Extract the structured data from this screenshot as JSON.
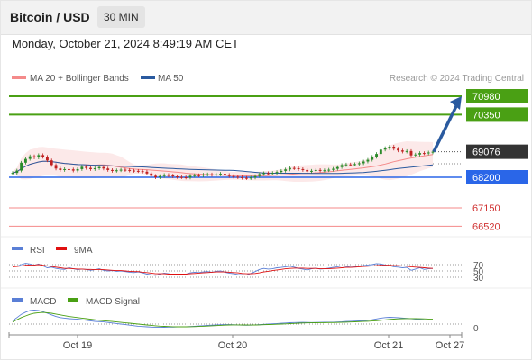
{
  "header": {
    "title": "Bitcoin / USD",
    "interval": "30 MIN"
  },
  "datetime": "Monday, October 21, 2024 8:49:19 AM CET",
  "credit": "Research © 2024 Trading Central",
  "colors": {
    "resistance": "#4aa014",
    "support": "#f48a8a",
    "pivot": "#2a66e8",
    "price": "#333333",
    "ma50": "#2a5a9f",
    "bollinger": "#f48a8a",
    "rsi": "#5a7fd6",
    "rsi_ma": "#e01010",
    "macd": "#5a7fd6",
    "macd_signal": "#4aa014",
    "up_candle": "#2a8a2a",
    "down_candle": "#c02020",
    "arrow": "#2a5a9f"
  },
  "chart_data": [
    {
      "type": "candlestick",
      "title": "",
      "legend": [
        "MA 20 + Bollinger Bands",
        "MA 50"
      ],
      "x_ticks": [
        "Oct 19",
        "Oct 20",
        "Oct 21",
        "Oct 27"
      ],
      "price_ticks": [
        "70980",
        "70350",
        "69076",
        "68200",
        "67150",
        "66520"
      ],
      "levels": [
        {
          "label": "70980",
          "value": 70980,
          "kind": "resistance"
        },
        {
          "label": "70350",
          "value": 70350,
          "kind": "resistance"
        },
        {
          "label": "69076",
          "value": 69076,
          "kind": "last"
        },
        {
          "label": "68200",
          "value": 68200,
          "kind": "pivot"
        },
        {
          "label": "67150",
          "value": 67150,
          "kind": "support"
        },
        {
          "label": "66520",
          "value": 66520,
          "kind": "support"
        }
      ],
      "target_arrow": {
        "from": 69076,
        "to": 70980
      },
      "close": [
        68350,
        68430,
        68700,
        68830,
        68920,
        68880,
        68960,
        68900,
        68780,
        68620,
        68500,
        68450,
        68480,
        68470,
        68430,
        68480,
        68560,
        68520,
        68480,
        68510,
        68550,
        68500,
        68450,
        68420,
        68440,
        68460,
        68450,
        68430,
        68420,
        68410,
        68390,
        68330,
        68250,
        68200,
        68240,
        68280,
        68260,
        68230,
        68210,
        68200,
        68190,
        68250,
        68270,
        68260,
        68290,
        68300,
        68280,
        68300,
        68320,
        68280,
        68240,
        68220,
        68200,
        68180,
        68170,
        68190,
        68240,
        68310,
        68340,
        68330,
        68350,
        68380,
        68420,
        68470,
        68520,
        68510,
        68480,
        68450,
        68400,
        68420,
        68450,
        68430,
        68440,
        68460,
        68490,
        68550,
        68620,
        68640,
        68630,
        68650,
        68680,
        68740,
        68800,
        68900,
        69000,
        69150,
        69200,
        69250,
        69180,
        69120,
        69080,
        69100,
        68950,
        68980,
        69030,
        69020,
        69050,
        69076
      ],
      "high_offset": 60,
      "low_offset": 60
    },
    {
      "type": "line",
      "title": "",
      "legend": [
        "RSI",
        "9MA"
      ],
      "y_ticks": [
        "70",
        "50",
        "30"
      ],
      "rsi": [
        64,
        65,
        70,
        74,
        72,
        68,
        72,
        66,
        60,
        62,
        58,
        56,
        55,
        60,
        57,
        54,
        56,
        55,
        52,
        54,
        57,
        52,
        50,
        51,
        49,
        50,
        48,
        46,
        45,
        47,
        44,
        40,
        38,
        36,
        40,
        43,
        41,
        38,
        39,
        38,
        40,
        44,
        46,
        45,
        47,
        48,
        46,
        49,
        50,
        46,
        43,
        41,
        39,
        38,
        37,
        42,
        48,
        55,
        58,
        56,
        57,
        60,
        61,
        63,
        65,
        62,
        58,
        56,
        53,
        57,
        59,
        56,
        57,
        59,
        61,
        63,
        66,
        64,
        62,
        63,
        66,
        67,
        69,
        70,
        73,
        72,
        69,
        67,
        63,
        62,
        60,
        61,
        52,
        56,
        60,
        55,
        57,
        58
      ],
      "rsi_ma": [
        63,
        64,
        66,
        68,
        69,
        69,
        70,
        68,
        66,
        64,
        62,
        60,
        58,
        58,
        57,
        56,
        56,
        55,
        55,
        54,
        55,
        54,
        53,
        52,
        51,
        51,
        50,
        49,
        48,
        48,
        46,
        45,
        43,
        41,
        41,
        41,
        40,
        40,
        40,
        40,
        40,
        41,
        42,
        43,
        44,
        45,
        46,
        47,
        47,
        47,
        46,
        45,
        44,
        42,
        41,
        41,
        42,
        44,
        47,
        49,
        51,
        53,
        55,
        57,
        58,
        59,
        59,
        59,
        58,
        58,
        58,
        57,
        57,
        57,
        58,
        59,
        60,
        61,
        61,
        62,
        63,
        64,
        65,
        66,
        67,
        68,
        68,
        68,
        67,
        67,
        66,
        65,
        63,
        62,
        61,
        60,
        59,
        58
      ]
    },
    {
      "type": "line",
      "title": "",
      "legend": [
        "MACD",
        "MACD Signal"
      ],
      "y_ticks": [
        "0"
      ],
      "macd": [
        60,
        120,
        180,
        220,
        250,
        260,
        250,
        230,
        200,
        170,
        140,
        120,
        110,
        100,
        95,
        90,
        80,
        70,
        60,
        50,
        45,
        40,
        30,
        20,
        10,
        0,
        -10,
        -20,
        -30,
        -40,
        -45,
        -50,
        -55,
        -60,
        -60,
        -58,
        -55,
        -55,
        -52,
        -50,
        -48,
        -45,
        -40,
        -35,
        -30,
        -25,
        -20,
        -15,
        -12,
        -10,
        -10,
        -12,
        -15,
        -20,
        -22,
        -20,
        -15,
        -10,
        -5,
        0,
        5,
        10,
        15,
        20,
        25,
        28,
        30,
        32,
        30,
        28,
        30,
        32,
        33,
        34,
        35,
        38,
        42,
        48,
        52,
        55,
        58,
        62,
        70,
        80,
        95,
        110,
        120,
        125,
        122,
        118,
        112,
        105,
        98,
        90,
        85,
        80,
        78,
        75
      ],
      "macd_signal": [
        40,
        80,
        120,
        150,
        180,
        200,
        210,
        215,
        210,
        200,
        185,
        170,
        155,
        140,
        130,
        120,
        110,
        100,
        90,
        80,
        70,
        62,
        55,
        48,
        40,
        32,
        24,
        16,
        8,
        0,
        -8,
        -16,
        -24,
        -32,
        -38,
        -42,
        -45,
        -48,
        -50,
        -50,
        -50,
        -48,
        -46,
        -44,
        -40,
        -36,
        -32,
        -28,
        -24,
        -20,
        -17,
        -15,
        -15,
        -16,
        -17,
        -18,
        -17,
        -15,
        -12,
        -9,
        -6,
        -3,
        0,
        4,
        8,
        12,
        16,
        20,
        22,
        24,
        25,
        26,
        27,
        28,
        29,
        30,
        32,
        35,
        38,
        41,
        45,
        48,
        52,
        57,
        62,
        70,
        78,
        86,
        92,
        97,
        100,
        102,
        102,
        100,
        98,
        96,
        93,
        90
      ]
    }
  ]
}
